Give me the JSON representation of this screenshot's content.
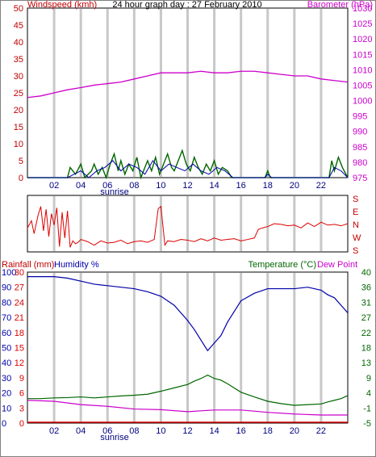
{
  "header": {
    "title": "24 hour graph day : 27 February 2010",
    "left_label": "Windspeed (kmh)",
    "right_label": "Barometer (hPa)"
  },
  "colors": {
    "wind": "#c00000",
    "baro": "#cc00cc",
    "gust": "#006600",
    "avg": "#0000aa",
    "dir": "#dd0000",
    "humidity": "#0000aa",
    "temperature": "#006600",
    "dewpoint": "#cc00cc",
    "rain": "#dd0000",
    "grid": "#c8c8c8",
    "axis_green": "#006600"
  },
  "chart_data": [
    {
      "type": "line",
      "title": "24 hour graph day : 27 February 2010",
      "x_ticks": [
        "02",
        "04",
        "06",
        "08",
        "10",
        "12",
        "14",
        "16",
        "18",
        "20",
        "22"
      ],
      "x_annotation": "sunrise",
      "y_left_label": "Windspeed (kmh)",
      "y_left_ticks": [
        0,
        5,
        10,
        15,
        20,
        25,
        30,
        35,
        40,
        45,
        50
      ],
      "y_right_label": "Barometer (hPa)",
      "y_right_ticks": [
        975,
        980,
        985,
        990,
        995,
        1000,
        1005,
        1010,
        1015,
        1020,
        1025,
        1030
      ],
      "ylim_left": [
        0,
        50
      ],
      "ylim_right": [
        975,
        1030
      ],
      "grid": true,
      "series": [
        {
          "name": "Barometer (hPa)",
          "x": [
            0,
            1,
            2,
            3,
            4,
            5,
            6,
            7,
            8,
            9,
            10,
            11,
            12,
            13,
            14,
            15,
            16,
            17,
            18,
            19,
            20,
            21,
            22,
            23,
            24
          ],
          "values": [
            1001,
            1001.5,
            1002.5,
            1003.5,
            1004.2,
            1005,
            1005.5,
            1006,
            1007,
            1008,
            1009,
            1009,
            1009,
            1009.5,
            1009,
            1009,
            1009.5,
            1009.5,
            1009,
            1008.5,
            1008,
            1008,
            1007,
            1006.5,
            1006
          ]
        },
        {
          "x": [
            0,
            3,
            3.2,
            3.6,
            4,
            4.3,
            4.8,
            5,
            5.3,
            5.6,
            5.9,
            6.2,
            6.5,
            6.8,
            7,
            7.3,
            7.6,
            7.9,
            8.2,
            8.5,
            8.8,
            9,
            9.3,
            9.6,
            9.9,
            10.2,
            10.5,
            10.8,
            11,
            11.3,
            11.6,
            11.9,
            12.2,
            12.5,
            12.8,
            13.1,
            13.4,
            13.7,
            14,
            14.3,
            14.6,
            15,
            15.3,
            17.8,
            18,
            18.2,
            22.6,
            22.8,
            23,
            23.3,
            23.6,
            24
          ],
          "values": [
            0,
            0,
            3,
            1,
            4,
            0,
            2,
            4,
            1,
            3,
            0,
            4,
            7,
            2,
            5,
            1,
            4,
            2,
            6,
            0,
            3,
            5,
            2,
            6,
            1,
            4,
            7,
            3,
            2,
            5,
            8,
            4,
            2,
            6,
            3,
            1,
            4,
            2,
            5,
            1,
            3,
            2,
            0,
            0,
            2,
            0,
            0,
            5,
            2,
            6,
            3,
            0
          ]
        },
        {
          "x": [
            0,
            3,
            3.5,
            4,
            4.6,
            5.2,
            5.8,
            6.4,
            7,
            7.6,
            8.2,
            8.8,
            9.4,
            10,
            10.6,
            11.2,
            11.8,
            12.4,
            13,
            13.6,
            14.2,
            14.8,
            15.4,
            17.8,
            18,
            18.3,
            22.6,
            23,
            23.5,
            24
          ],
          "values": [
            0,
            0,
            1,
            2,
            0,
            2,
            3,
            5,
            2,
            4,
            3,
            1,
            5,
            2,
            4,
            3,
            2,
            4,
            2,
            1,
            3,
            2,
            0,
            0,
            1,
            0,
            0,
            3,
            2,
            0
          ]
        }
      ]
    },
    {
      "type": "line",
      "y_right_ticks": [
        "S",
        "E",
        "N",
        "W",
        "S"
      ],
      "series": [
        {
          "x": [
            0,
            0.3,
            0.5,
            0.8,
            1,
            1.2,
            1.4,
            1.6,
            1.8,
            2,
            2.2,
            2.4,
            2.6,
            2.8,
            3,
            3.2,
            3.4,
            3.6,
            3.8,
            4,
            4.5,
            5,
            5.5,
            6,
            6.5,
            7,
            7.5,
            8,
            8.5,
            9,
            9.5,
            9.8,
            10,
            10.3,
            10.5,
            11,
            11.5,
            12,
            12.5,
            13,
            13.5,
            14,
            14.5,
            15,
            15.5,
            16,
            16.5,
            17,
            17.3,
            17.6,
            18,
            18.5,
            19,
            19.5,
            20,
            20.5,
            21,
            21.5,
            22,
            22.5,
            23,
            23.5,
            24
          ],
          "values": [
            150,
            200,
            110,
            240,
            300,
            130,
            280,
            90,
            250,
            170,
            290,
            20,
            260,
            80,
            270,
            15,
            60,
            40,
            50,
            70,
            55,
            30,
            60,
            45,
            50,
            65,
            40,
            55,
            60,
            50,
            70,
            285,
            300,
            30,
            60,
            55,
            70,
            65,
            55,
            75,
            60,
            80,
            65,
            70,
            75,
            60,
            70,
            80,
            140,
            150,
            160,
            180,
            175,
            165,
            170,
            150,
            185,
            160,
            190,
            170,
            175,
            165,
            180
          ]
        }
      ]
    },
    {
      "type": "line",
      "x_ticks": [
        "02",
        "04",
        "06",
        "08",
        "10",
        "12",
        "14",
        "16",
        "18",
        "20",
        "22"
      ],
      "x_annotation": "sunrise",
      "y_left_labels": [
        "Rainfall (mm)",
        "Humidity %"
      ],
      "y_left_ticks_humidity": [
        0,
        10,
        20,
        30,
        40,
        50,
        60,
        70,
        80,
        90,
        100
      ],
      "y_left_ticks_rain": [
        0,
        3,
        6,
        9,
        12,
        15,
        18,
        21,
        24,
        27,
        30
      ],
      "y_right_labels": [
        "Temperature (°C)",
        "Dew Point"
      ],
      "y_right_ticks": [
        -5,
        -1,
        4,
        9,
        13,
        18,
        22,
        27,
        31,
        36,
        40
      ],
      "ylim_humidity": [
        0,
        100
      ],
      "ylim_temperature": [
        -5,
        40
      ],
      "grid": true,
      "series": [
        {
          "name": "Humidity %",
          "x": [
            0,
            1,
            2,
            3,
            4,
            5,
            6,
            7,
            8,
            9,
            10,
            11,
            12,
            12.5,
            13,
            13.5,
            14,
            14.5,
            15,
            16,
            17,
            18,
            19,
            20,
            21,
            22,
            22.5,
            23,
            23.5,
            24
          ],
          "values": [
            97,
            97,
            97,
            96,
            94,
            92,
            91,
            90,
            89,
            87,
            84,
            78,
            68,
            62,
            55,
            48,
            53,
            58,
            67,
            81,
            86,
            89,
            89,
            89,
            90,
            88,
            85,
            83,
            78,
            73
          ]
        },
        {
          "name": "Temperature (°C)",
          "x": [
            0,
            1,
            2,
            3,
            4,
            5,
            6,
            7,
            8,
            9,
            10,
            11,
            12,
            12.5,
            13,
            13.5,
            14,
            14.5,
            15,
            16,
            17,
            18,
            19,
            20,
            21,
            22,
            22.5,
            23,
            23.5,
            24
          ],
          "values": [
            2.3,
            2.3,
            2.5,
            2.6,
            2.8,
            2.5,
            2.8,
            3.1,
            3.3,
            3.6,
            4.5,
            5.5,
            6.5,
            7.5,
            8.3,
            9.3,
            8.3,
            7.8,
            6.7,
            4.2,
            2.8,
            1.5,
            0.8,
            0.3,
            0.5,
            0.7,
            1.3,
            1.8,
            2.3,
            3.2
          ]
        },
        {
          "name": "Dew Point",
          "x": [
            0,
            2,
            4,
            6,
            8,
            10,
            12,
            14,
            16,
            18,
            20,
            22,
            24
          ],
          "values": [
            1.8,
            1.5,
            0.5,
            0,
            -0.8,
            -1,
            -1.6,
            -1.1,
            -1.1,
            -1.8,
            -2.3,
            -2.6,
            -2.6
          ]
        },
        {
          "name": "Rainfall (mm)",
          "x": [
            0,
            24
          ],
          "values": [
            0,
            0
          ]
        }
      ]
    }
  ]
}
